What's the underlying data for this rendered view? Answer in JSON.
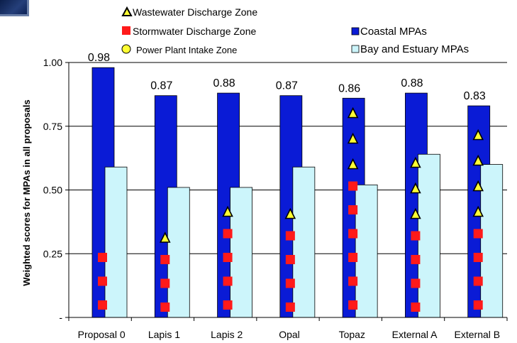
{
  "chart_data": {
    "type": "bar",
    "ylabel": "Weighted scores for MPAs in all proposals",
    "ylim": [
      0,
      1.0
    ],
    "yticks": [
      {
        "value": 0,
        "label": "-"
      },
      {
        "value": 0.25,
        "label": "0.25"
      },
      {
        "value": 0.5,
        "label": "0.50"
      },
      {
        "value": 0.75,
        "label": "0.75"
      },
      {
        "value": 1.0,
        "label": "1.00"
      }
    ],
    "grid": true,
    "legend_position": "top",
    "categories": [
      "Proposal 0",
      "Lapis 1",
      "Lapis 2",
      "Opal",
      "Topaz",
      "External A",
      "External B"
    ],
    "series": [
      {
        "name": "Coastal MPAs",
        "color": "#0a1bd6",
        "values": [
          0.98,
          0.87,
          0.88,
          0.87,
          0.86,
          0.88,
          0.83
        ]
      },
      {
        "name": "Bay and Estuary MPAs",
        "color": "#ccf5fb",
        "values": [
          0.59,
          0.51,
          0.51,
          0.59,
          0.52,
          0.64,
          0.6
        ]
      }
    ],
    "data_labels": [
      "0.98",
      "0.87",
      "0.88",
      "0.87",
      "0.86",
      "0.88",
      "0.83"
    ],
    "marker_legend": [
      {
        "name": "Wastewater Discharge Zone",
        "shape": "triangle",
        "color": "#000000"
      },
      {
        "name": "Stormwater Discharge Zone",
        "shape": "square",
        "color": "#ff0000"
      },
      {
        "name": "Power Plant Intake Zone",
        "shape": "circle",
        "color": "#ffff00"
      }
    ],
    "markers": {
      "stormwater_counts": [
        3,
        3,
        4,
        4,
        6,
        4,
        4
      ],
      "wastewater_counts": [
        0,
        1,
        1,
        1,
        3,
        3,
        4
      ],
      "powerplant_counts": [
        0,
        0,
        0,
        0,
        0,
        0,
        0
      ]
    }
  }
}
